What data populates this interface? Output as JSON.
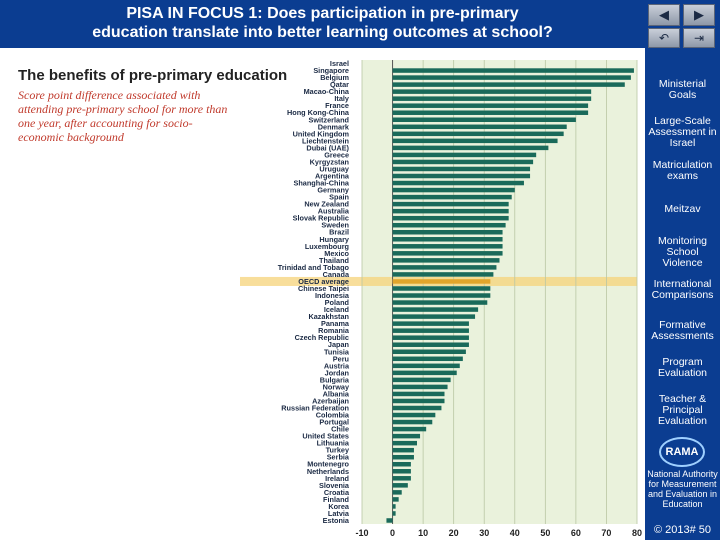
{
  "header": {
    "title_line1": "PISA IN FOCUS 1: Does participation in pre-primary",
    "title_line2": "education translate into better learning outcomes at school?"
  },
  "nav": {
    "prev_icon": "triangle-left-icon",
    "next_icon": "triangle-right-icon",
    "return_icon": "return-arrow-icon",
    "end_icon": "end-icon"
  },
  "sidebar": {
    "items": [
      {
        "label": "Ministerial Goals"
      },
      {
        "label": "Large-Scale Assessment in Israel"
      },
      {
        "label": "Matriculation exams"
      },
      {
        "label": "Meitzav"
      },
      {
        "label": "Monitoring School Violence"
      },
      {
        "label": "International Comparisons"
      },
      {
        "label": "Formative Assessments"
      },
      {
        "label": "Program Evaluation"
      },
      {
        "label": "Teacher & Principal Evaluation"
      }
    ],
    "logo_text": "RAMA",
    "org_text": "National Authority for Measurement and Evaluation in Education",
    "footer": "© 2013# 50"
  },
  "colors": {
    "brand": "#0b3d91",
    "bar": "#1a6a5a",
    "highlight_row": "#f6d37a",
    "plot_bg": "#eaf2dc",
    "title_red": "#c0392b"
  },
  "chart_data": {
    "type": "bar",
    "orientation": "horizontal",
    "title": "The benefits of pre-primary education",
    "subtitle": "Score point difference associated with attending pre-primary school for more than one year, after accounting for socio-economic background",
    "xlim": [
      -10,
      80
    ],
    "xticks": [
      -10,
      0,
      10,
      20,
      30,
      40,
      50,
      60,
      70,
      80
    ],
    "grid": true,
    "highlight": "OECD average",
    "categories": [
      "Israel",
      "Singapore",
      "Belgium",
      "Qatar",
      "Macao-China",
      "Italy",
      "France",
      "Hong Kong-China",
      "Switzerland",
      "Denmark",
      "United Kingdom",
      "Liechtenstein",
      "Dubai (UAE)",
      "Greece",
      "Kyrgyzstan",
      "Uruguay",
      "Argentina",
      "Shanghai-China",
      "Germany",
      "Spain",
      "New Zealand",
      "Australia",
      "Slovak Republic",
      "Sweden",
      "Brazil",
      "Hungary",
      "Luxembourg",
      "Mexico",
      "Thailand",
      "Trinidad and Tobago",
      "Canada",
      "OECD average",
      "Chinese Taipei",
      "Indonesia",
      "Poland",
      "Iceland",
      "Kazakhstan",
      "Panama",
      "Romania",
      "Czech Republic",
      "Japan",
      "Tunisia",
      "Peru",
      "Austria",
      "Jordan",
      "Bulgaria",
      "Norway",
      "Albania",
      "Azerbaijan",
      "Russian Federation",
      "Colombia",
      "Portugal",
      "Chile",
      "United States",
      "Lithuania",
      "Turkey",
      "Serbia",
      "Montenegro",
      "Netherlands",
      "Ireland",
      "Slovenia",
      "Croatia",
      "Finland",
      "Korea",
      "Latvia",
      "Estonia"
    ],
    "values": [
      null,
      79,
      78,
      76,
      65,
      65,
      64,
      64,
      60,
      57,
      56,
      54,
      51,
      47,
      46,
      45,
      45,
      43,
      40,
      39,
      38,
      38,
      38,
      37,
      36,
      36,
      36,
      36,
      35,
      34,
      33,
      32,
      32,
      32,
      31,
      28,
      27,
      25,
      25,
      25,
      25,
      24,
      23,
      22,
      21,
      19,
      18,
      17,
      17,
      16,
      14,
      13,
      11,
      9,
      8,
      7,
      7,
      6,
      6,
      6,
      5,
      3,
      2,
      1,
      1,
      -2
    ]
  }
}
